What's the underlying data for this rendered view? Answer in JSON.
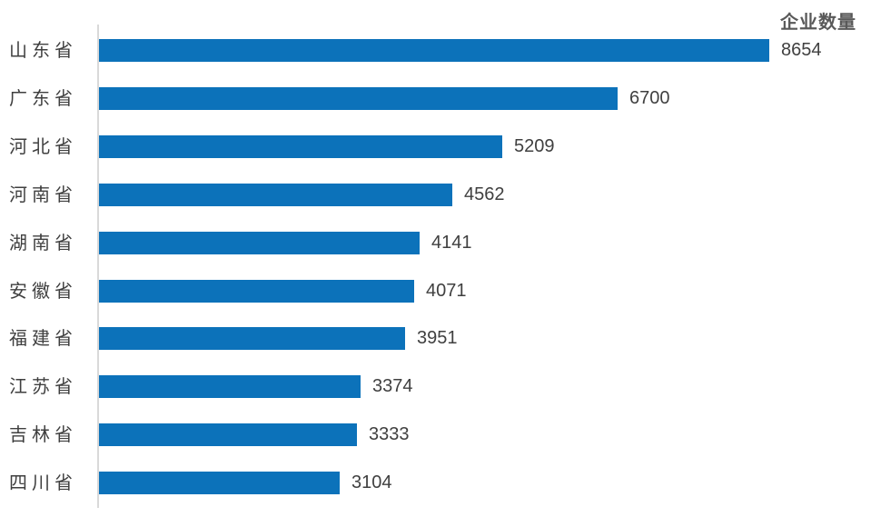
{
  "chart": {
    "title": "企业数量"
  },
  "chart_data": {
    "type": "bar",
    "orientation": "horizontal",
    "title": "企业数量",
    "categories": [
      "山东省",
      "广东省",
      "河北省",
      "河南省",
      "湖南省",
      "安徽省",
      "福建省",
      "江苏省",
      "吉林省",
      "四川省"
    ],
    "values": [
      8654,
      6700,
      5209,
      4562,
      4141,
      4071,
      3951,
      3374,
      3333,
      3104
    ],
    "xlim": [
      0,
      8654
    ],
    "grid": false,
    "legend_position": "none",
    "data_labels": true,
    "colors": {
      "bar": "#0c72ba",
      "axis_line": "#d9d9d9",
      "category_label": "#3f3f3f",
      "value_label": "#404040",
      "title": "#595959",
      "background": "#ffffff"
    }
  }
}
